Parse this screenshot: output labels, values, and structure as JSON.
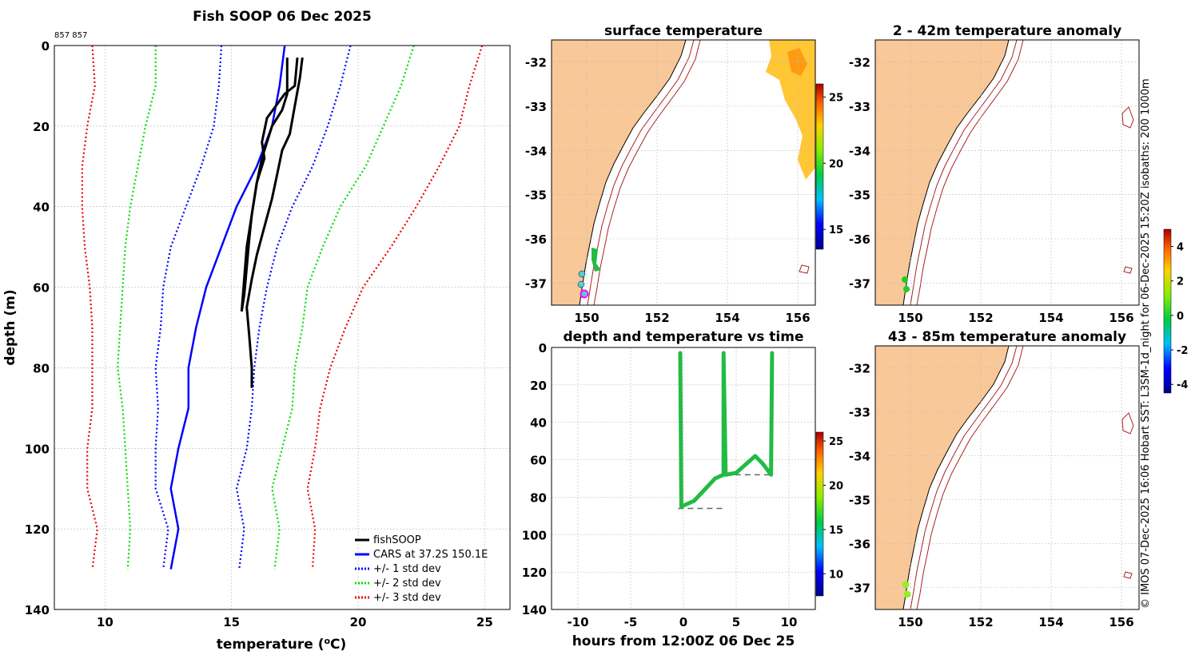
{
  "profile": {
    "title": "Fish SOOP 06 Dec 2025",
    "corner_label": "857 857",
    "xlabel_prefix": "temperature (",
    "xlabel_unit_sup": "o",
    "xlabel_suffix": "C)",
    "ylabel": "depth (m)",
    "legend": [
      "fishSOOP",
      "CARS at 37.2S 150.1E",
      "+/- 1 std dev",
      "+/- 2 std dev",
      "+/- 3 std dev"
    ]
  },
  "maps": {
    "surface_title": "surface temperature",
    "anom1_title": "2 - 42m temperature anomaly",
    "anom2_title": "43 - 85m temperature anomaly",
    "lat_ticks": [
      "-32",
      "-33",
      "-34",
      "-35",
      "-36",
      "-37"
    ],
    "lon_ticks": [
      "150",
      "152",
      "154",
      "156"
    ],
    "temp_cbar_ticks": [
      "15",
      "20",
      "25"
    ],
    "anom_cbar_ticks": [
      "4",
      "2",
      "0",
      "-2",
      "-4"
    ]
  },
  "timeplot": {
    "title": "depth and temperature vs time",
    "xlabel": "hours from 12:00Z 06 Dec 25",
    "cbar_ticks": [
      "10",
      "15",
      "20",
      "25"
    ]
  },
  "side_caption": "© IMOS 07-Dec-2025 16:06 Hobart SST: L3SM-1d_night for 06-Dec-2025 15:20Z isobaths: 200  1000m",
  "colors": {
    "fish": "#000000",
    "cars": "#0000ff",
    "std1": "#0000ff",
    "std2": "#00dd00",
    "std3": "#ee0000",
    "land": "#f8c898",
    "drop": "#22bb44"
  },
  "chart_data": [
    {
      "type": "line",
      "title": "Fish SOOP 06 Dec 2025",
      "xlabel": "temperature (oC)",
      "ylabel": "depth (m)",
      "xlim": [
        8,
        26
      ],
      "ylim": [
        140,
        0
      ],
      "xticks": [
        10,
        15,
        20,
        25
      ],
      "yticks": [
        0,
        20,
        40,
        60,
        80,
        100,
        120,
        140
      ],
      "series": [
        {
          "name": "fishSOOP",
          "points": [
            [
              17.8,
              3
            ],
            [
              17.7,
              8
            ],
            [
              17.5,
              15
            ],
            [
              17.3,
              22
            ],
            [
              17.0,
              26
            ],
            [
              16.8,
              32
            ],
            [
              16.6,
              38
            ],
            [
              16.3,
              45
            ],
            [
              16.0,
              52
            ],
            [
              15.8,
              58
            ],
            [
              15.6,
              65
            ],
            [
              15.7,
              72
            ],
            [
              15.8,
              80
            ],
            [
              15.8,
              85
            ]
          ]
        },
        {
          "name": "fishSOOP",
          "points": [
            [
              17.2,
              3
            ],
            [
              17.2,
              8
            ],
            [
              17.2,
              12
            ],
            [
              17.0,
              16
            ],
            [
              16.6,
              20
            ],
            [
              16.4,
              24
            ],
            [
              16.2,
              28
            ],
            [
              16.0,
              34
            ],
            [
              15.8,
              42
            ],
            [
              15.7,
              48
            ],
            [
              15.6,
              55
            ],
            [
              15.5,
              62
            ],
            [
              15.4,
              66
            ]
          ]
        },
        {
          "name": "fishSOOP",
          "points": [
            [
              17.6,
              3
            ],
            [
              17.5,
              10
            ],
            [
              17.1,
              12
            ],
            [
              16.4,
              18
            ],
            [
              16.2,
              24
            ],
            [
              16.3,
              28
            ],
            [
              16.0,
              34
            ],
            [
              15.8,
              42
            ],
            [
              15.6,
              50
            ],
            [
              15.5,
              58
            ],
            [
              15.4,
              66
            ]
          ]
        },
        {
          "name": "CARS at 37.2S 150.1E",
          "points": [
            [
              17.1,
              0
            ],
            [
              16.9,
              10
            ],
            [
              16.6,
              20
            ],
            [
              16.0,
              30
            ],
            [
              15.2,
              40
            ],
            [
              14.6,
              50
            ],
            [
              14.0,
              60
            ],
            [
              13.6,
              70
            ],
            [
              13.3,
              80
            ],
            [
              13.3,
              90
            ],
            [
              12.9,
              100
            ],
            [
              12.6,
              110
            ],
            [
              12.9,
              120
            ],
            [
              12.6,
              130
            ]
          ]
        },
        {
          "name": "+/- 1 std dev",
          "points": [
            [
              19.7,
              0
            ],
            [
              19.3,
              10
            ],
            [
              18.8,
              20
            ],
            [
              18.2,
              30
            ],
            [
              17.4,
              40
            ],
            [
              16.8,
              50
            ],
            [
              16.4,
              60
            ],
            [
              16.1,
              70
            ],
            [
              15.9,
              80
            ],
            [
              15.8,
              90
            ],
            [
              15.6,
              100
            ],
            [
              15.2,
              110
            ],
            [
              15.5,
              120
            ],
            [
              15.3,
              130
            ]
          ]
        },
        {
          "name": "+/- 1 std dev",
          "points": [
            [
              14.6,
              0
            ],
            [
              14.5,
              10
            ],
            [
              14.3,
              20
            ],
            [
              13.8,
              30
            ],
            [
              13.2,
              40
            ],
            [
              12.6,
              50
            ],
            [
              12.3,
              60
            ],
            [
              12.2,
              70
            ],
            [
              12.0,
              80
            ],
            [
              12.1,
              90
            ],
            [
              12.0,
              100
            ],
            [
              12.0,
              110
            ],
            [
              12.5,
              120
            ],
            [
              12.3,
              130
            ]
          ]
        },
        {
          "name": "+/- 2 std dev",
          "points": [
            [
              22.2,
              0
            ],
            [
              21.7,
              10
            ],
            [
              21.0,
              20
            ],
            [
              20.3,
              30
            ],
            [
              19.3,
              40
            ],
            [
              18.6,
              50
            ],
            [
              18.0,
              60
            ],
            [
              17.8,
              70
            ],
            [
              17.5,
              80
            ],
            [
              17.4,
              90
            ],
            [
              17.0,
              100
            ],
            [
              16.6,
              110
            ],
            [
              16.9,
              120
            ],
            [
              16.7,
              130
            ]
          ]
        },
        {
          "name": "+/- 2 std dev",
          "points": [
            [
              12.0,
              0
            ],
            [
              12.0,
              10
            ],
            [
              11.6,
              20
            ],
            [
              11.3,
              30
            ],
            [
              11.0,
              40
            ],
            [
              10.8,
              50
            ],
            [
              10.7,
              60
            ],
            [
              10.6,
              70
            ],
            [
              10.5,
              80
            ],
            [
              10.7,
              90
            ],
            [
              10.8,
              100
            ],
            [
              10.9,
              110
            ],
            [
              11.0,
              120
            ],
            [
              10.9,
              130
            ]
          ]
        },
        {
          "name": "+/- 3 std dev",
          "points": [
            [
              24.9,
              0
            ],
            [
              24.4,
              10
            ],
            [
              24.0,
              20
            ],
            [
              23.2,
              30
            ],
            [
              22.3,
              40
            ],
            [
              21.3,
              50
            ],
            [
              20.2,
              60
            ],
            [
              19.5,
              70
            ],
            [
              18.9,
              80
            ],
            [
              18.5,
              90
            ],
            [
              18.3,
              100
            ],
            [
              18.0,
              110
            ],
            [
              18.3,
              120
            ],
            [
              18.2,
              130
            ]
          ]
        },
        {
          "name": "+/- 3 std dev",
          "points": [
            [
              9.5,
              0
            ],
            [
              9.6,
              10
            ],
            [
              9.3,
              20
            ],
            [
              9.1,
              30
            ],
            [
              9.1,
              40
            ],
            [
              9.2,
              50
            ],
            [
              9.4,
              60
            ],
            [
              9.5,
              70
            ],
            [
              9.5,
              80
            ],
            [
              9.5,
              90
            ],
            [
              9.3,
              100
            ],
            [
              9.3,
              110
            ],
            [
              9.7,
              120
            ],
            [
              9.5,
              130
            ]
          ]
        }
      ]
    },
    {
      "type": "scatter",
      "title": "depth and temperature vs time",
      "xlabel": "hours from 12:00Z 06 Dec 25",
      "ylabel": "",
      "xlim": [
        -12.5,
        12.5
      ],
      "ylim": [
        140,
        0
      ],
      "xticks": [
        -10,
        -5,
        0,
        5,
        10
      ],
      "yticks": [
        0,
        20,
        40,
        60,
        80,
        100,
        120,
        140
      ],
      "series": [
        {
          "name": "depth",
          "points": [
            [
              -0.3,
              3
            ],
            [
              -0.2,
              85
            ],
            [
              1,
              82
            ],
            [
              2,
              76
            ],
            [
              3,
              70
            ],
            [
              3.8,
              68
            ],
            [
              3.8,
              3
            ],
            [
              4.0,
              68
            ],
            [
              5,
              67
            ],
            [
              6,
              62
            ],
            [
              6.8,
              58
            ],
            [
              7.5,
              62
            ],
            [
              8.3,
              68
            ],
            [
              8.4,
              3
            ]
          ]
        }
      ],
      "reference_lines": [
        {
          "y": 86,
          "x": [
            -0.5,
            3.8
          ]
        },
        {
          "y": 68,
          "x": [
            4,
            8.5
          ]
        }
      ]
    }
  ]
}
